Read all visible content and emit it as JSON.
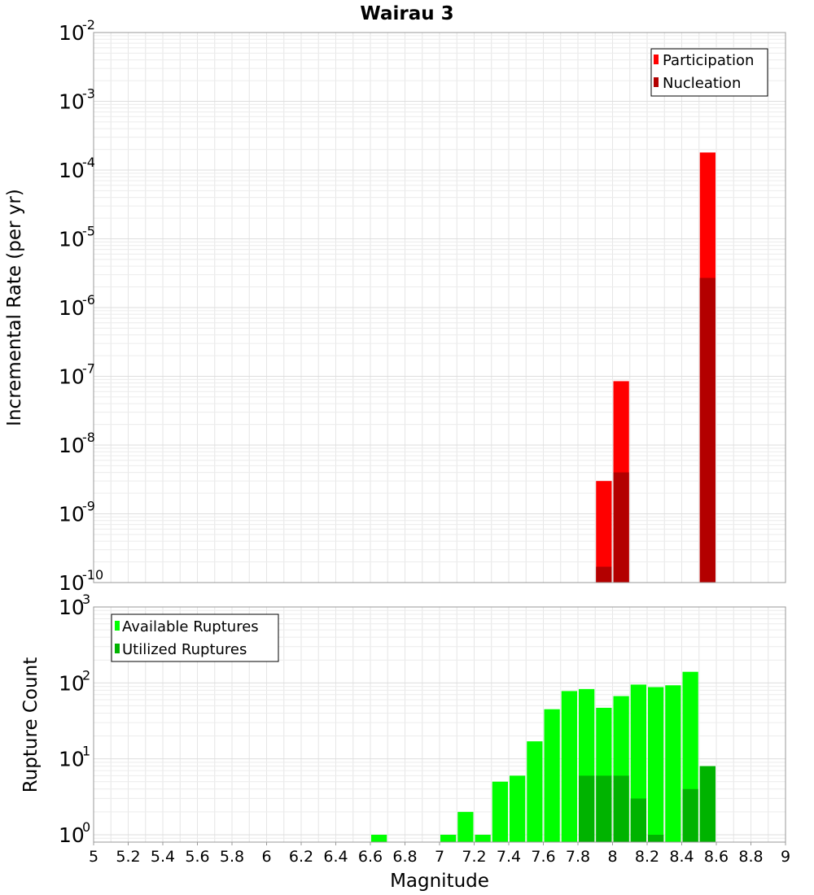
{
  "chart_data": [
    {
      "type": "bar",
      "title": "Wairau 3",
      "xlabel": "",
      "ylabel": "Incremental Rate (per yr)",
      "yscale": "log",
      "xlim": [
        5,
        9
      ],
      "ylim": [
        1e-10,
        0.01
      ],
      "ytick_exponents": [
        "-10",
        "-9",
        "-8",
        "-7",
        "-6",
        "-5",
        "-4",
        "-3",
        "-2"
      ],
      "ytick_base": "10",
      "grid": true,
      "legend_position": "top-right",
      "bar_width": 0.1,
      "series": [
        {
          "name": "Participation",
          "color": "#ff0000",
          "x": [
            7.95,
            8.05,
            8.55
          ],
          "values": [
            3e-09,
            8.5e-08,
            0.00018
          ]
        },
        {
          "name": "Nucleation",
          "color": "#b30000",
          "x": [
            7.95,
            8.05,
            8.55
          ],
          "values": [
            1.7e-10,
            4e-09,
            2.7e-06
          ]
        }
      ]
    },
    {
      "type": "bar",
      "title": "",
      "xlabel": "Magnitude",
      "ylabel": "Rupture Count",
      "yscale": "log",
      "xlim": [
        5,
        9
      ],
      "ylim": [
        0.8,
        1000
      ],
      "ytick_exponents": [
        "0",
        "1",
        "2",
        "3"
      ],
      "ytick_base": "10",
      "xtick_labels": [
        "5",
        "5.2",
        "5.4",
        "5.6",
        "5.8",
        "6",
        "6.2",
        "6.4",
        "6.6",
        "6.8",
        "7",
        "7.2",
        "7.4",
        "7.6",
        "7.8",
        "8",
        "8.2",
        "8.4",
        "8.6",
        "8.8",
        "9"
      ],
      "grid": true,
      "legend_position": "top-left",
      "bar_width": 0.1,
      "series": [
        {
          "name": "Available Ruptures",
          "color": "#00ff00",
          "x": [
            6.65,
            7.05,
            7.15,
            7.25,
            7.35,
            7.45,
            7.55,
            7.65,
            7.75,
            7.85,
            7.95,
            8.05,
            8.15,
            8.25,
            8.35,
            8.45,
            8.55
          ],
          "values": [
            1,
            1,
            2,
            1,
            5,
            6,
            17,
            45,
            78,
            83,
            47,
            67,
            95,
            88,
            93,
            140,
            8
          ]
        },
        {
          "name": "Utilized Ruptures",
          "color": "#00b300",
          "x": [
            7.85,
            7.95,
            8.05,
            8.15,
            8.25,
            8.45,
            8.55
          ],
          "values": [
            6,
            6,
            6,
            3,
            1,
            4,
            8
          ]
        }
      ]
    }
  ]
}
